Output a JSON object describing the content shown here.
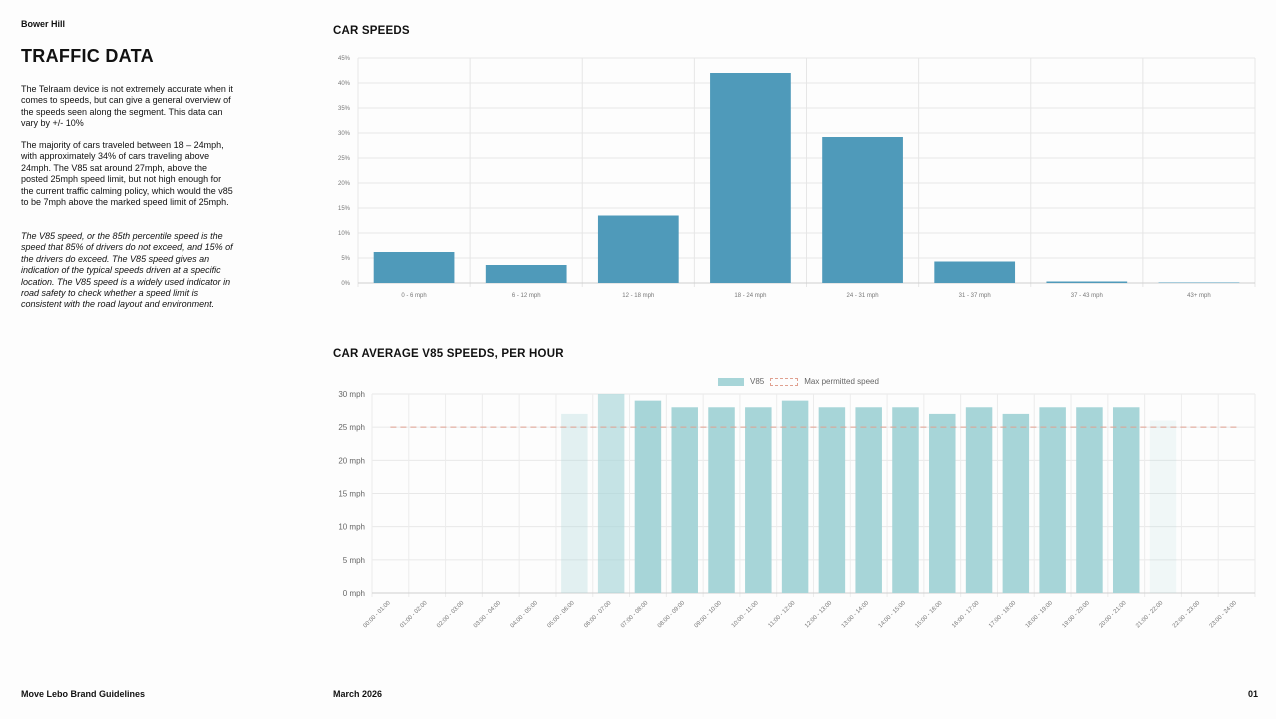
{
  "header": {
    "site": "Bower Hill",
    "title": "TRAFFIC DATA"
  },
  "body": {
    "p1": "The Telraam device is not extremely accurate when it comes to speeds, but can give a general overview of the speeds seen along the segment. This data can vary by +/- 10%",
    "p2": "The majority of cars traveled between 18 – 24mph, with approximately 34% of cars traveling above 24mph. The V85 sat around 27mph, above the posted 25mph speed limit, but not high enough for the current traffic calming policy, which would the v85 to be 7mph above the marked speed limit of 25mph.",
    "p3": "The V85 speed, or the 85th percentile speed is the speed that 85% of drivers do not exceed, and 15% of the drivers do exceed. The V85 speed gives an indication of the typical speeds driven at a specific location. The V85 speed is a widely used indicator in road safety to check whether a speed limit is consistent with the road layout and environment."
  },
  "footer": {
    "left": "Move Lebo Brand Guidelines",
    "middle": "March 2026",
    "page": "01"
  },
  "colors": {
    "speed_bar": "#4f9aba",
    "v85_bar": "#a7d5d8",
    "max_line": "#e0a090"
  },
  "chart_data": [
    {
      "type": "bar",
      "title": "CAR SPEEDS",
      "categories": [
        "0 - 6 mph",
        "6 - 12 mph",
        "12 - 18 mph",
        "18 - 24 mph",
        "24 - 31 mph",
        "31 - 37 mph",
        "37 - 43 mph",
        "43+ mph"
      ],
      "values": [
        6.2,
        3.6,
        13.5,
        42,
        29.2,
        4.3,
        0.3,
        0.1
      ],
      "ylim": [
        0,
        45
      ],
      "yticks": [
        "0%",
        "5%",
        "10%",
        "15%",
        "20%",
        "25%",
        "30%",
        "35%",
        "40%",
        "45%"
      ],
      "grid": true
    },
    {
      "type": "bar",
      "title": "CAR AVERAGE V85 SPEEDS, PER HOUR",
      "categories": [
        "00:00 - 01:00",
        "01:00 - 02:00",
        "02:00 - 03:00",
        "03:00 - 04:00",
        "04:00 - 05:00",
        "05:00 - 06:00",
        "06:00 - 07:00",
        "07:00 - 08:00",
        "08:00 - 09:00",
        "09:00 - 10:00",
        "10:00 - 11:00",
        "11:00 - 12:00",
        "12:00 - 13:00",
        "13:00 - 14:00",
        "14:00 - 15:00",
        "15:00 - 16:00",
        "16:00 - 17:00",
        "17:00 - 18:00",
        "18:00 - 19:00",
        "19:00 - 20:00",
        "20:00 - 21:00",
        "21:00 - 22:00",
        "22:00 - 23:00",
        "23:00 - 24:00"
      ],
      "series": [
        {
          "name": "V85",
          "values": [
            null,
            null,
            null,
            null,
            null,
            27,
            30,
            29,
            28,
            28,
            28,
            29,
            28,
            28,
            28,
            27,
            28,
            27,
            28,
            28,
            28,
            26,
            null,
            null
          ]
        },
        {
          "name": "Max permitted speed",
          "values": [
            25,
            25,
            25,
            25,
            25,
            25,
            25,
            25,
            25,
            25,
            25,
            25,
            25,
            25,
            25,
            25,
            25,
            25,
            25,
            25,
            25,
            25,
            25,
            25
          ]
        }
      ],
      "bar_opacity": [
        null,
        null,
        null,
        null,
        null,
        0.3,
        0.65,
        1,
        1,
        1,
        1,
        1,
        1,
        1,
        1,
        1,
        1,
        1,
        1,
        1,
        1,
        0.15,
        null,
        null
      ],
      "ylim": [
        0,
        30
      ],
      "yticks": [
        "0 mph",
        "5 mph",
        "10 mph",
        "15 mph",
        "20 mph",
        "25 mph",
        "30 mph"
      ],
      "legend": "top-center",
      "grid": true
    }
  ]
}
